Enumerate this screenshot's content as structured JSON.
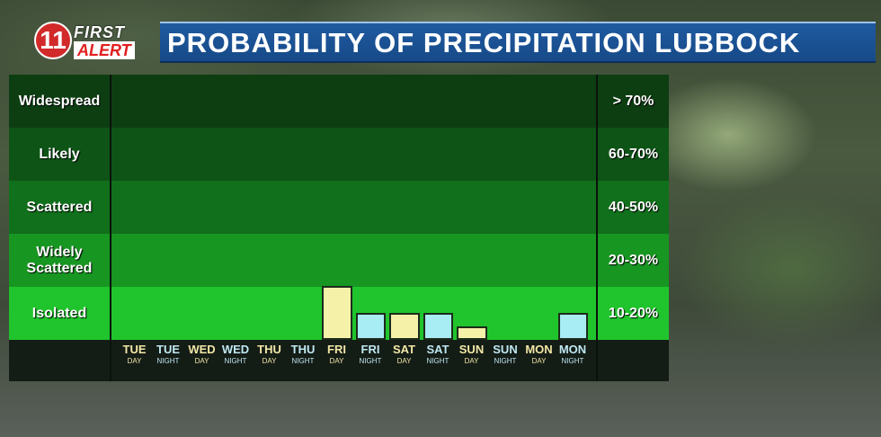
{
  "logo": {
    "badge": "11",
    "first": "FIRST",
    "alert": "ALERT"
  },
  "title": "PROBABILITY OF PRECIPITATION LUBBOCK",
  "colors": {
    "bands": [
      "#0d3e12",
      "#0e5416",
      "#11701b",
      "#189622",
      "#20c42c"
    ],
    "day_bar": "#f5f1a8",
    "night_bar": "#a8ecf4"
  },
  "chart_data": {
    "type": "bar",
    "title": "PROBABILITY OF PRECIPITATION LUBBOCK",
    "categories": [
      {
        "day": "TUE",
        "part": "DAY"
      },
      {
        "day": "TUE",
        "part": "NIGHT"
      },
      {
        "day": "WED",
        "part": "DAY"
      },
      {
        "day": "WED",
        "part": "NIGHT"
      },
      {
        "day": "THU",
        "part": "DAY"
      },
      {
        "day": "THU",
        "part": "NIGHT"
      },
      {
        "day": "FRI",
        "part": "DAY"
      },
      {
        "day": "FRI",
        "part": "NIGHT"
      },
      {
        "day": "SAT",
        "part": "DAY"
      },
      {
        "day": "SAT",
        "part": "NIGHT"
      },
      {
        "day": "SUN",
        "part": "DAY"
      },
      {
        "day": "SUN",
        "part": "NIGHT"
      },
      {
        "day": "MON",
        "part": "DAY"
      },
      {
        "day": "MON",
        "part": "NIGHT"
      }
    ],
    "values": [
      0,
      0,
      0,
      0,
      0,
      0,
      20,
      10,
      10,
      10,
      5,
      0,
      0,
      10
    ],
    "bands": [
      {
        "label": "Widespread",
        "range": "> 70%"
      },
      {
        "label": "Likely",
        "range": "60-70%"
      },
      {
        "label": "Scattered",
        "range": "40-50%"
      },
      {
        "label": "Widely Scattered",
        "range": "20-30%"
      },
      {
        "label": "Isolated",
        "range": "10-20%"
      }
    ],
    "ylim": [
      0,
      20
    ]
  }
}
